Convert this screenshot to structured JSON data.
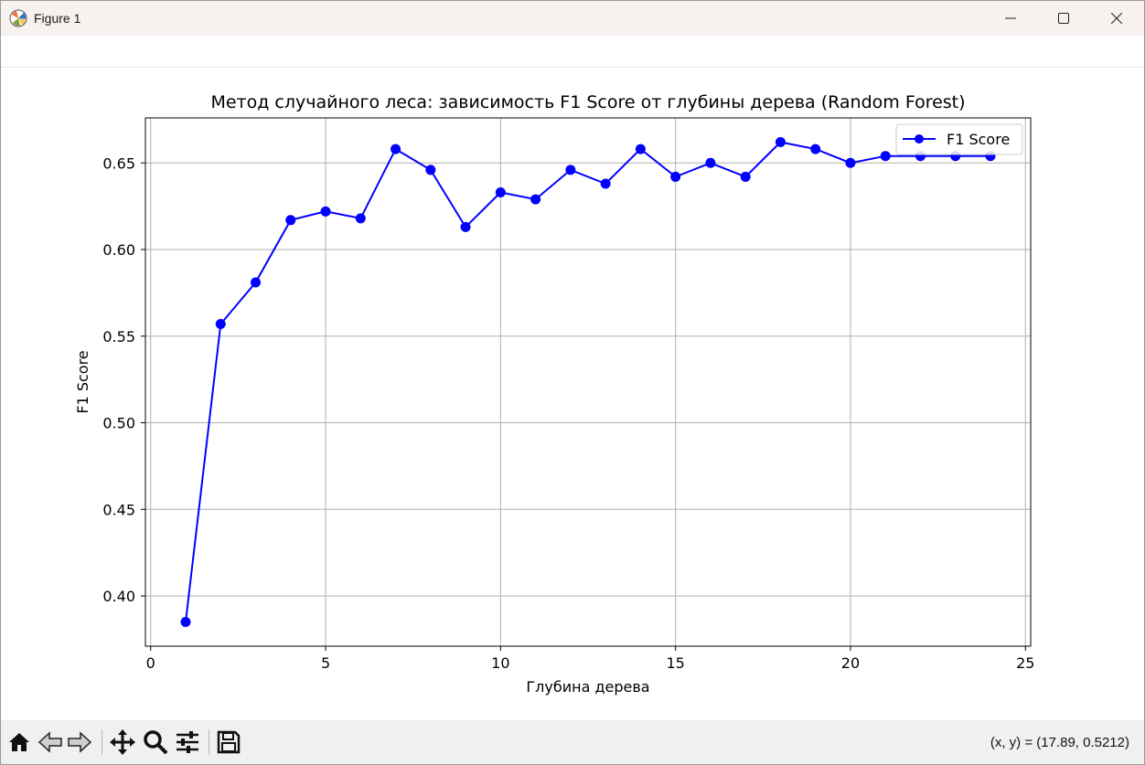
{
  "window": {
    "title": "Figure 1"
  },
  "status": {
    "coords": "(x, y) = (17.89, 0.5212)"
  },
  "toolbar": {
    "tools": [
      {
        "name": "home-button",
        "icon": "home-icon"
      },
      {
        "name": "back-button",
        "icon": "arrow-left-icon"
      },
      {
        "name": "forward-button",
        "icon": "arrow-right-icon"
      },
      {
        "name": "pan-button",
        "icon": "move-icon"
      },
      {
        "name": "zoom-button",
        "icon": "magnifier-icon"
      },
      {
        "name": "configure-subplots-button",
        "icon": "sliders-icon"
      },
      {
        "name": "save-button",
        "icon": "floppy-disk-icon"
      }
    ]
  },
  "chart_data": {
    "type": "line",
    "title": "Метод случайного леса: зависимость F1 Score от глубины дерева (Random Forest)",
    "xlabel": "Глубина дерева",
    "ylabel": "F1 Score",
    "xlim": [
      -0.15,
      25.15
    ],
    "ylim": [
      0.371,
      0.676
    ],
    "xticks": [
      0,
      5,
      10,
      15,
      20,
      25
    ],
    "yticks": [
      0.4,
      0.45,
      0.5,
      0.55,
      0.6,
      0.65
    ],
    "xtick_labels": [
      "0",
      "5",
      "10",
      "15",
      "20",
      "25"
    ],
    "ytick_labels": [
      "0.40",
      "0.45",
      "0.50",
      "0.55",
      "0.60",
      "0.65"
    ],
    "grid": true,
    "legend_position": "top-right",
    "color": "#0000ff",
    "series": [
      {
        "name": "F1 Score",
        "x": [
          1,
          2,
          3,
          4,
          5,
          6,
          7,
          8,
          9,
          10,
          11,
          12,
          13,
          14,
          15,
          16,
          17,
          18,
          19,
          20,
          21,
          22,
          23,
          24
        ],
        "y": [
          0.385,
          0.557,
          0.581,
          0.617,
          0.622,
          0.618,
          0.658,
          0.646,
          0.613,
          0.633,
          0.629,
          0.646,
          0.638,
          0.658,
          0.642,
          0.65,
          0.642,
          0.662,
          0.658,
          0.65,
          0.654,
          0.654,
          0.654,
          0.654
        ]
      }
    ]
  }
}
